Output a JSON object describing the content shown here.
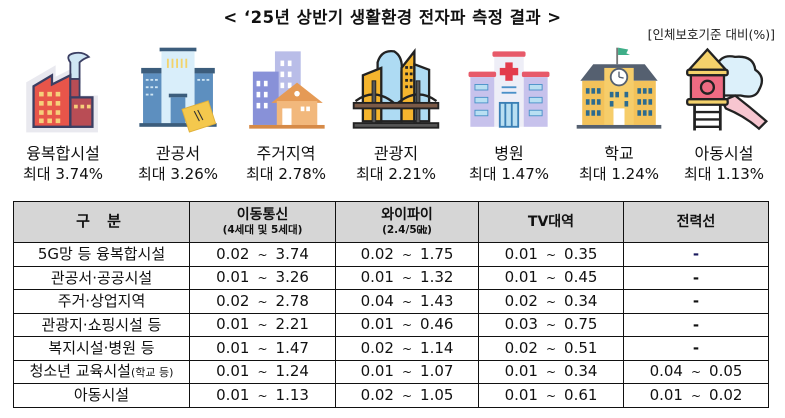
{
  "header": {
    "title": "< ‘25년 상반기 생활환경 전자파 측정 결과 >",
    "unit_note": "[인체보호기준 대비(%)]"
  },
  "icons": [
    {
      "icon": "factory-icon",
      "name": "융복합시설",
      "max_label": "최대",
      "max_value": "3.74%"
    },
    {
      "icon": "government-office-icon",
      "name": "관공서",
      "max_label": "최대",
      "max_value": "3.26%"
    },
    {
      "icon": "residential-area-icon",
      "name": "주거지역",
      "max_label": "최대",
      "max_value": "2.78%"
    },
    {
      "icon": "tourist-spot-icon",
      "name": "관광지",
      "max_label": "최대",
      "max_value": "2.21%"
    },
    {
      "icon": "hospital-icon",
      "name": "병원",
      "max_label": "최대",
      "max_value": "1.47%"
    },
    {
      "icon": "school-icon",
      "name": "학교",
      "max_label": "최대",
      "max_value": "1.24%"
    },
    {
      "icon": "playground-icon",
      "name": "아동시설",
      "max_label": "최대",
      "max_value": "1.13%"
    }
  ],
  "table": {
    "headers": {
      "category": "구  분",
      "mobile": "이동통신",
      "mobile_sub": "(4세대 및 5세대)",
      "wifi": "와이파이",
      "wifi_sub": "(2.4/5㎓)",
      "tv": "TV대역",
      "power": "전력선"
    },
    "tilde": "~",
    "rows": [
      {
        "category": "5G망 등 융복합시설",
        "category_small": "",
        "mobile": [
          "0.02",
          "3.74"
        ],
        "wifi": [
          "0.02",
          "1.75"
        ],
        "tv": [
          "0.01",
          "0.35"
        ],
        "power": "-"
      },
      {
        "category": "관공서·공공시설",
        "category_small": "",
        "mobile": [
          "0.01",
          "3.26"
        ],
        "wifi": [
          "0.01",
          "1.32"
        ],
        "tv": [
          "0.01",
          "0.45"
        ],
        "power": "-"
      },
      {
        "category": "주거·상업지역",
        "category_small": "",
        "mobile": [
          "0.02",
          "2.78"
        ],
        "wifi": [
          "0.04",
          "1.43"
        ],
        "tv": [
          "0.02",
          "0.34"
        ],
        "power": "-"
      },
      {
        "category": "관광지·쇼핑시설 등",
        "category_small": "",
        "mobile": [
          "0.01",
          "2.21"
        ],
        "wifi": [
          "0.01",
          "0.46"
        ],
        "tv": [
          "0.03",
          "0.75"
        ],
        "power": "-"
      },
      {
        "category": "복지시설·병원 등",
        "category_small": "",
        "mobile": [
          "0.01",
          "1.47"
        ],
        "wifi": [
          "0.02",
          "1.14"
        ],
        "tv": [
          "0.02",
          "0.51"
        ],
        "power": "-"
      },
      {
        "category": "청소년 교육시설",
        "category_small": "(학교 등)",
        "mobile": [
          "0.01",
          "1.24"
        ],
        "wifi": [
          "0.01",
          "1.07"
        ],
        "tv": [
          "0.01",
          "0.34"
        ],
        "power": [
          "0.04",
          "0.05"
        ]
      },
      {
        "category": "아동시설",
        "category_small": "",
        "mobile": [
          "0.01",
          "1.13"
        ],
        "wifi": [
          "0.02",
          "1.05"
        ],
        "tv": [
          "0.01",
          "0.61"
        ],
        "power": [
          "0.01",
          "0.02"
        ]
      }
    ]
  },
  "colors": {
    "header_bg": "#d6d6d6",
    "border": "#111111",
    "first_dash": "#1a1a5e"
  }
}
